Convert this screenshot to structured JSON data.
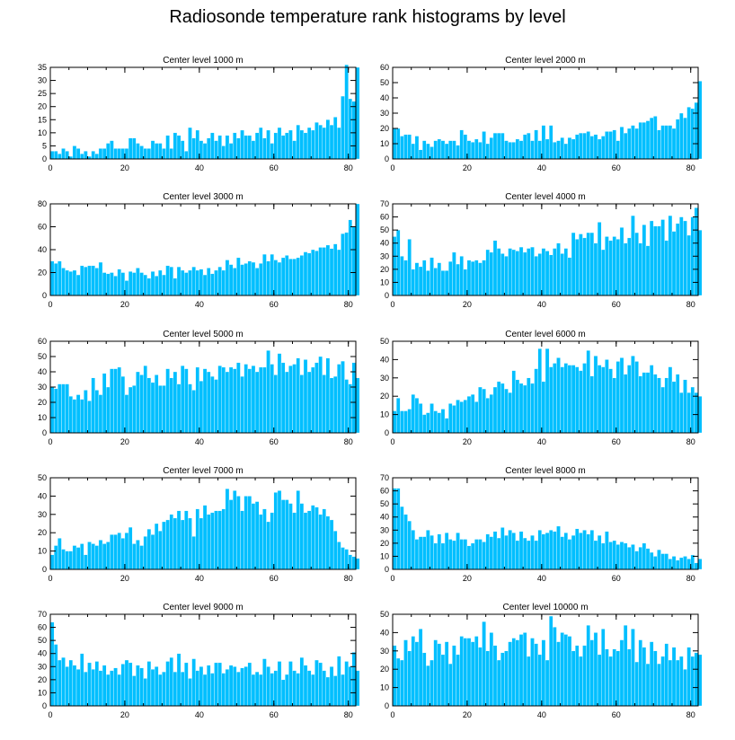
{
  "page_title": "Radiosonde temperature rank histograms by level",
  "chart_data": [
    {
      "type": "bar",
      "title": "Center level 1000 m",
      "xlim": [
        0,
        82
      ],
      "ylim": [
        0,
        35
      ],
      "xticks": [
        0,
        20,
        40,
        60,
        80
      ],
      "yticks": [
        0,
        5,
        10,
        15,
        20,
        25,
        30,
        35
      ],
      "values": [
        3,
        3,
        2,
        4,
        3,
        1,
        5,
        4,
        2,
        3,
        1,
        3,
        2,
        4,
        4,
        6,
        7,
        4,
        4,
        4,
        4,
        8,
        8,
        6,
        5,
        4,
        4,
        7,
        6,
        6,
        4,
        9,
        4,
        10,
        9,
        7,
        3,
        12,
        8,
        11,
        7,
        6,
        8,
        10,
        7,
        9,
        5,
        9,
        6,
        10,
        8,
        11,
        9,
        9,
        7,
        10,
        12,
        8,
        11,
        6,
        10,
        12,
        9,
        10,
        11,
        7,
        13,
        11,
        10,
        12,
        11,
        14,
        13,
        12,
        15,
        13,
        16,
        12,
        24,
        36,
        23,
        22,
        35
      ]
    },
    {
      "type": "bar",
      "title": "Center level 2000 m",
      "xlim": [
        0,
        82
      ],
      "ylim": [
        0,
        60
      ],
      "xticks": [
        0,
        20,
        40,
        60,
        80
      ],
      "yticks": [
        0,
        10,
        20,
        30,
        40,
        50,
        60
      ],
      "values": [
        20,
        20,
        15,
        16,
        16,
        10,
        15,
        6,
        12,
        10,
        8,
        12,
        13,
        12,
        10,
        12,
        12,
        9,
        19,
        16,
        12,
        11,
        13,
        11,
        18,
        10,
        14,
        17,
        17,
        17,
        12,
        11,
        11,
        13,
        12,
        16,
        17,
        12,
        19,
        12,
        22,
        13,
        22,
        11,
        12,
        14,
        10,
        14,
        13,
        16,
        17,
        17,
        18,
        15,
        16,
        13,
        15,
        18,
        18,
        19,
        12,
        21,
        17,
        20,
        22,
        20,
        24,
        24,
        25,
        27,
        28,
        19,
        22,
        22,
        22,
        20,
        26,
        30,
        27,
        34,
        33,
        37,
        51
      ]
    },
    {
      "type": "bar",
      "title": "Center level 3000 m",
      "xlim": [
        0,
        82
      ],
      "ylim": [
        0,
        80
      ],
      "xticks": [
        0,
        20,
        40,
        60,
        80
      ],
      "yticks": [
        0,
        20,
        40,
        60,
        80
      ],
      "values": [
        30,
        28,
        30,
        24,
        22,
        21,
        22,
        18,
        26,
        25,
        26,
        26,
        24,
        29,
        20,
        19,
        20,
        17,
        23,
        20,
        13,
        21,
        20,
        24,
        20,
        18,
        15,
        21,
        17,
        22,
        18,
        26,
        25,
        15,
        25,
        22,
        20,
        22,
        25,
        22,
        23,
        18,
        24,
        19,
        22,
        25,
        22,
        31,
        27,
        24,
        33,
        27,
        28,
        30,
        29,
        24,
        28,
        36,
        30,
        36,
        31,
        29,
        33,
        35,
        32,
        32,
        33,
        35,
        38,
        37,
        40,
        39,
        42,
        42,
        44,
        41,
        45,
        40,
        54,
        55,
        66,
        60,
        80
      ]
    },
    {
      "type": "bar",
      "title": "Center level 4000 m",
      "xlim": [
        0,
        82
      ],
      "ylim": [
        0,
        70
      ],
      "xticks": [
        0,
        20,
        40,
        60,
        80
      ],
      "yticks": [
        0,
        10,
        20,
        30,
        40,
        50,
        60,
        70
      ],
      "values": [
        45,
        50,
        30,
        27,
        43,
        20,
        25,
        22,
        27,
        19,
        29,
        21,
        25,
        19,
        19,
        26,
        33,
        24,
        30,
        20,
        27,
        26,
        27,
        25,
        27,
        35,
        33,
        42,
        36,
        32,
        30,
        36,
        35,
        34,
        37,
        33,
        36,
        37,
        30,
        32,
        36,
        34,
        31,
        36,
        40,
        32,
        36,
        29,
        48,
        43,
        47,
        44,
        48,
        48,
        40,
        56,
        35,
        45,
        42,
        45,
        43,
        52,
        40,
        44,
        61,
        48,
        40,
        54,
        38,
        57,
        53,
        53,
        58,
        42,
        61,
        49,
        55,
        60,
        57,
        46,
        60,
        67,
        50
      ]
    },
    {
      "type": "bar",
      "title": "Center level 5000 m",
      "xlim": [
        0,
        82
      ],
      "ylim": [
        0,
        60
      ],
      "xticks": [
        0,
        20,
        40,
        60,
        80
      ],
      "yticks": [
        0,
        10,
        20,
        30,
        40,
        50,
        60
      ],
      "values": [
        30,
        29,
        32,
        32,
        32,
        24,
        22,
        25,
        22,
        28,
        21,
        36,
        28,
        25,
        39,
        30,
        42,
        42,
        43,
        37,
        25,
        30,
        31,
        40,
        38,
        44,
        36,
        33,
        38,
        31,
        31,
        42,
        36,
        40,
        32,
        44,
        42,
        32,
        28,
        43,
        34,
        42,
        40,
        37,
        35,
        44,
        43,
        40,
        43,
        42,
        46,
        37,
        45,
        42,
        44,
        40,
        43,
        43,
        54,
        45,
        38,
        52,
        46,
        40,
        44,
        45,
        49,
        38,
        48,
        40,
        43,
        46,
        50,
        38,
        49,
        36,
        37,
        45,
        47,
        35,
        32,
        46,
        36
      ]
    },
    {
      "type": "bar",
      "title": "Center level 6000 m",
      "xlim": [
        0,
        82
      ],
      "ylim": [
        0,
        50
      ],
      "xticks": [
        0,
        20,
        40,
        60,
        80
      ],
      "yticks": [
        0,
        10,
        20,
        30,
        40,
        50
      ],
      "values": [
        12,
        19,
        12,
        12,
        13,
        21,
        19,
        16,
        10,
        11,
        16,
        12,
        11,
        13,
        8,
        16,
        15,
        18,
        17,
        18,
        20,
        21,
        17,
        25,
        24,
        19,
        21,
        25,
        28,
        27,
        24,
        22,
        34,
        29,
        27,
        26,
        30,
        27,
        35,
        46,
        28,
        46,
        36,
        38,
        41,
        36,
        38,
        37,
        37,
        36,
        34,
        38,
        45,
        31,
        42,
        37,
        36,
        40,
        35,
        30,
        39,
        41,
        32,
        37,
        42,
        39,
        31,
        33,
        33,
        37,
        32,
        30,
        25,
        30,
        36,
        28,
        32,
        22,
        29,
        22,
        25,
        22,
        20
      ]
    },
    {
      "type": "bar",
      "title": "Center level 7000 m",
      "xlim": [
        0,
        82
      ],
      "ylim": [
        0,
        50
      ],
      "xticks": [
        0,
        20,
        40,
        60,
        80
      ],
      "yticks": [
        0,
        10,
        20,
        30,
        40,
        50
      ],
      "values": [
        8,
        13,
        17,
        11,
        10,
        10,
        13,
        12,
        14,
        8,
        15,
        14,
        13,
        16,
        14,
        15,
        19,
        19,
        20,
        17,
        20,
        23,
        14,
        16,
        13,
        18,
        22,
        19,
        25,
        21,
        26,
        27,
        30,
        28,
        32,
        27,
        32,
        28,
        18,
        33,
        28,
        35,
        30,
        31,
        32,
        32,
        33,
        44,
        38,
        43,
        40,
        32,
        40,
        40,
        36,
        37,
        30,
        33,
        26,
        31,
        42,
        43,
        38,
        38,
        36,
        31,
        43,
        36,
        31,
        32,
        35,
        34,
        30,
        33,
        29,
        27,
        21,
        15,
        12,
        11,
        8,
        7,
        6
      ]
    },
    {
      "type": "bar",
      "title": "Center level 8000 m",
      "xlim": [
        0,
        82
      ],
      "ylim": [
        0,
        70
      ],
      "xticks": [
        0,
        20,
        40,
        60,
        80
      ],
      "yticks": [
        0,
        10,
        20,
        30,
        40,
        50,
        60,
        70
      ],
      "values": [
        62,
        62,
        48,
        42,
        37,
        30,
        23,
        25,
        25,
        30,
        26,
        20,
        27,
        20,
        28,
        23,
        22,
        28,
        23,
        23,
        18,
        20,
        23,
        23,
        21,
        27,
        25,
        29,
        24,
        32,
        26,
        30,
        28,
        22,
        29,
        24,
        22,
        26,
        22,
        30,
        27,
        28,
        30,
        29,
        33,
        25,
        28,
        23,
        26,
        31,
        28,
        30,
        27,
        30,
        22,
        26,
        20,
        29,
        21,
        22,
        19,
        21,
        20,
        17,
        19,
        14,
        17,
        20,
        16,
        13,
        10,
        15,
        12,
        12,
        8,
        10,
        7,
        9,
        10,
        8,
        11,
        5,
        8
      ]
    },
    {
      "type": "bar",
      "title": "Center level 9000 m",
      "xlim": [
        0,
        82
      ],
      "ylim": [
        0,
        70
      ],
      "xticks": [
        0,
        20,
        40,
        60,
        80
      ],
      "yticks": [
        0,
        10,
        20,
        30,
        40,
        50,
        60,
        70
      ],
      "values": [
        64,
        47,
        35,
        37,
        30,
        35,
        31,
        28,
        40,
        26,
        33,
        28,
        34,
        27,
        31,
        24,
        27,
        29,
        24,
        32,
        35,
        33,
        23,
        31,
        29,
        21,
        34,
        28,
        30,
        24,
        26,
        34,
        37,
        26,
        40,
        26,
        33,
        21,
        36,
        27,
        30,
        24,
        31,
        25,
        33,
        33,
        25,
        28,
        31,
        30,
        26,
        29,
        30,
        33,
        24,
        26,
        24,
        36,
        30,
        25,
        27,
        34,
        20,
        24,
        34,
        27,
        25,
        37,
        31,
        27,
        24,
        35,
        33,
        27,
        22,
        30,
        23,
        38,
        24,
        34,
        30,
        41,
        27
      ]
    },
    {
      "type": "bar",
      "title": "Center level 10000 m",
      "xlim": [
        0,
        82
      ],
      "ylim": [
        0,
        50
      ],
      "xticks": [
        0,
        20,
        40,
        60,
        80
      ],
      "yticks": [
        0,
        10,
        20,
        30,
        40,
        50
      ],
      "values": [
        33,
        26,
        25,
        36,
        30,
        38,
        35,
        42,
        29,
        22,
        25,
        36,
        34,
        28,
        35,
        23,
        33,
        28,
        38,
        37,
        37,
        35,
        38,
        32,
        46,
        30,
        40,
        33,
        25,
        29,
        30,
        35,
        37,
        36,
        39,
        40,
        27,
        37,
        34,
        28,
        36,
        25,
        49,
        43,
        35,
        40,
        39,
        38,
        30,
        33,
        27,
        33,
        44,
        36,
        40,
        28,
        42,
        31,
        27,
        31,
        30,
        36,
        44,
        31,
        42,
        24,
        36,
        32,
        23,
        35,
        30,
        23,
        27,
        34,
        25,
        32,
        25,
        27,
        20,
        32,
        27,
        29,
        28
      ]
    }
  ]
}
